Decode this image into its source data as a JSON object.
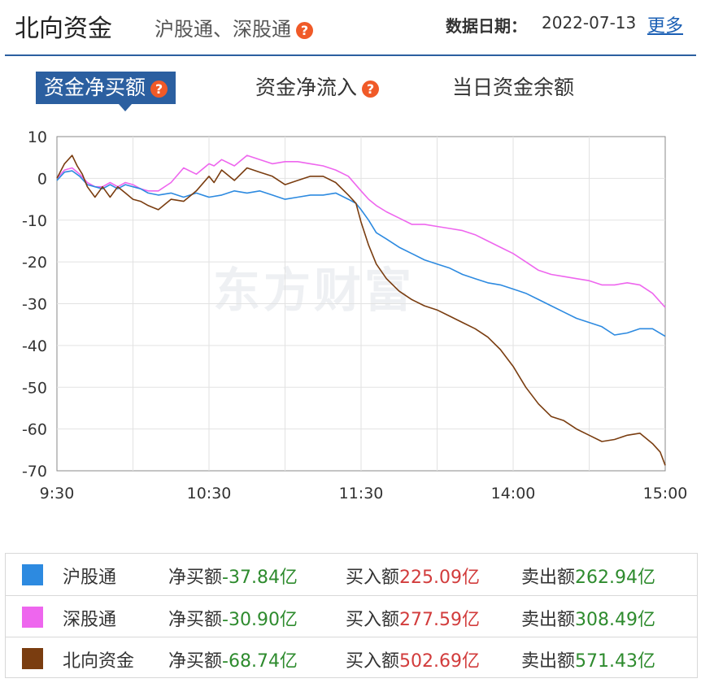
{
  "header": {
    "title": "北向资金",
    "subtitle": "沪股通、深股通",
    "date_label": "数据日期：",
    "date_value": "2022-07-13",
    "more": "更多"
  },
  "tabs": [
    {
      "label": "资金净买额",
      "active": true
    },
    {
      "label": "资金净流入",
      "active": false
    },
    {
      "label": "当日资金余额",
      "active": false
    }
  ],
  "watermark": "东方财富",
  "chart_data": {
    "type": "line",
    "ylim": [
      -70,
      10
    ],
    "yticks": [
      "10",
      "0",
      "-10",
      "-20",
      "-30",
      "-40",
      "-50",
      "-60",
      "-70"
    ],
    "xticks": [
      "9:30",
      "10:30",
      "11:30",
      "14:00",
      "15:00"
    ],
    "x_axis_note": "minutes of trading session, 0=9:30, 120=11:30/13:00, 240=15:00",
    "grid": true,
    "series": [
      {
        "name": "沪股通",
        "color": "#2d8ae0",
        "x": [
          0,
          3,
          6,
          9,
          12,
          15,
          18,
          21,
          24,
          27,
          30,
          33,
          36,
          40,
          45,
          50,
          55,
          60,
          65,
          70,
          75,
          80,
          85,
          90,
          95,
          100,
          105,
          110,
          115,
          118,
          120,
          123,
          126,
          130,
          135,
          140,
          145,
          150,
          155,
          160,
          165,
          170,
          175,
          180,
          185,
          190,
          195,
          200,
          205,
          210,
          215,
          220,
          225,
          230,
          235,
          240
        ],
        "y": [
          -0.5,
          1.5,
          1.8,
          0.5,
          -1.5,
          -2.0,
          -2.5,
          -1.5,
          -2.5,
          -1.5,
          -2.0,
          -2.5,
          -3.5,
          -4.0,
          -3.5,
          -4.5,
          -3.5,
          -4.5,
          -4.0,
          -3.0,
          -3.5,
          -3.0,
          -4.0,
          -5.0,
          -4.5,
          -4.0,
          -4.0,
          -3.5,
          -5.0,
          -6.0,
          -7.5,
          -10.0,
          -13.0,
          -14.5,
          -16.5,
          -18.0,
          -19.5,
          -20.5,
          -21.5,
          -23.0,
          -24.0,
          -25.0,
          -25.5,
          -26.5,
          -27.5,
          -29.0,
          -30.5,
          -32.0,
          -33.5,
          -34.5,
          -35.5,
          -37.5,
          -37.0,
          -36.0,
          -36.0,
          -37.8
        ]
      },
      {
        "name": "深股通",
        "color": "#ee66ee",
        "x": [
          0,
          3,
          6,
          9,
          12,
          15,
          18,
          21,
          24,
          27,
          30,
          33,
          36,
          40,
          45,
          50,
          55,
          60,
          62,
          65,
          70,
          75,
          80,
          85,
          90,
          95,
          100,
          105,
          110,
          115,
          120,
          123,
          126,
          130,
          135,
          140,
          145,
          150,
          155,
          160,
          165,
          170,
          175,
          180,
          185,
          190,
          195,
          200,
          205,
          210,
          215,
          220,
          225,
          230,
          235,
          240
        ],
        "y": [
          0,
          2.0,
          2.5,
          1.0,
          -1.0,
          -2.0,
          -2.0,
          -1.0,
          -2.0,
          -1.0,
          -1.5,
          -2.5,
          -3.0,
          -3.0,
          -1.0,
          2.5,
          1.0,
          3.5,
          3.0,
          4.5,
          3.0,
          5.5,
          4.5,
          3.5,
          4.0,
          4.0,
          3.5,
          3.0,
          2.0,
          0.5,
          -3.0,
          -5.0,
          -6.5,
          -8.0,
          -9.5,
          -11.0,
          -11.0,
          -11.5,
          -12.0,
          -12.5,
          -13.5,
          -15.0,
          -16.5,
          -18.0,
          -20.0,
          -22.0,
          -23.0,
          -23.5,
          -24.0,
          -24.5,
          -25.5,
          -25.5,
          -25.0,
          -25.5,
          -27.5,
          -30.9
        ]
      },
      {
        "name": "北向资金",
        "color": "#7a3d10",
        "x": [
          0,
          3,
          6,
          8,
          10,
          12,
          15,
          18,
          21,
          24,
          27,
          30,
          33,
          36,
          40,
          45,
          50,
          55,
          60,
          62,
          65,
          70,
          75,
          80,
          85,
          90,
          95,
          100,
          105,
          110,
          115,
          118,
          120,
          123,
          126,
          130,
          135,
          140,
          145,
          150,
          155,
          160,
          165,
          170,
          175,
          180,
          185,
          190,
          195,
          200,
          205,
          210,
          215,
          220,
          225,
          230,
          235,
          238,
          240
        ],
        "y": [
          0,
          3.5,
          5.5,
          3.0,
          1.0,
          -2.0,
          -4.5,
          -2.0,
          -4.5,
          -2.0,
          -3.5,
          -5.0,
          -5.5,
          -6.5,
          -7.5,
          -5.0,
          -5.5,
          -3.0,
          0.5,
          -1.0,
          2.0,
          -0.5,
          2.5,
          1.5,
          0.5,
          -1.5,
          -0.5,
          0.5,
          0.5,
          -1.0,
          -4.0,
          -6.0,
          -10.5,
          -16.0,
          -20.5,
          -24.0,
          -27.0,
          -29.0,
          -30.5,
          -31.5,
          -33.0,
          -34.5,
          -36.0,
          -38.0,
          -41.0,
          -45.0,
          -50.0,
          -54.0,
          -57.0,
          -58.0,
          -60.0,
          -61.5,
          -63.0,
          -62.5,
          -61.5,
          -61.0,
          -63.5,
          -65.5,
          -68.7
        ]
      }
    ]
  },
  "legend": [
    {
      "name": "沪股通",
      "color": "#2d8ae0",
      "net_label": "净买额",
      "net_value": "-37.84亿",
      "buy_label": "买入额",
      "buy_value": "225.09亿",
      "sell_label": "卖出额",
      "sell_value": "262.94亿"
    },
    {
      "name": "深股通",
      "color": "#ee66ee",
      "net_label": "净买额",
      "net_value": "-30.90亿",
      "buy_label": "买入额",
      "buy_value": "277.59亿",
      "sell_label": "卖出额",
      "sell_value": "308.49亿"
    },
    {
      "name": "北向资金",
      "color": "#7a3d10",
      "net_label": "净买额",
      "net_value": "-68.74亿",
      "buy_label": "买入额",
      "buy_value": "502.69亿",
      "sell_label": "卖出额",
      "sell_value": "571.43亿"
    }
  ]
}
